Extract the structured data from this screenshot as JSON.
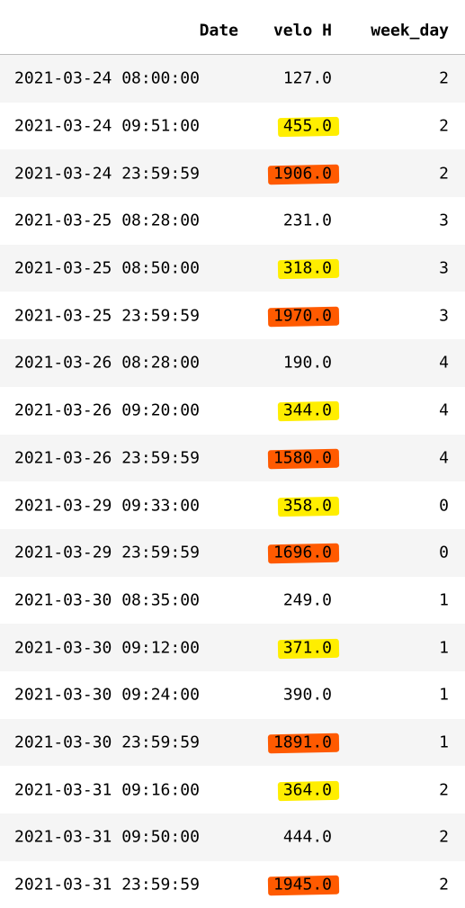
{
  "headers": {
    "date": "Date",
    "velo": "velo H",
    "week_day": "week_day"
  },
  "rows": [
    {
      "date": "2021-03-24 08:00:00",
      "velo": "127.0",
      "week_day": "2",
      "highlight": "none"
    },
    {
      "date": "2021-03-24 09:51:00",
      "velo": "455.0",
      "week_day": "2",
      "highlight": "yellow"
    },
    {
      "date": "2021-03-24 23:59:59",
      "velo": "1906.0",
      "week_day": "2",
      "highlight": "orange"
    },
    {
      "date": "2021-03-25 08:28:00",
      "velo": "231.0",
      "week_day": "3",
      "highlight": "none"
    },
    {
      "date": "2021-03-25 08:50:00",
      "velo": "318.0",
      "week_day": "3",
      "highlight": "yellow"
    },
    {
      "date": "2021-03-25 23:59:59",
      "velo": "1970.0",
      "week_day": "3",
      "highlight": "orange"
    },
    {
      "date": "2021-03-26 08:28:00",
      "velo": "190.0",
      "week_day": "4",
      "highlight": "none"
    },
    {
      "date": "2021-03-26 09:20:00",
      "velo": "344.0",
      "week_day": "4",
      "highlight": "yellow"
    },
    {
      "date": "2021-03-26 23:59:59",
      "velo": "1580.0",
      "week_day": "4",
      "highlight": "orange"
    },
    {
      "date": "2021-03-29 09:33:00",
      "velo": "358.0",
      "week_day": "0",
      "highlight": "yellow"
    },
    {
      "date": "2021-03-29 23:59:59",
      "velo": "1696.0",
      "week_day": "0",
      "highlight": "orange"
    },
    {
      "date": "2021-03-30 08:35:00",
      "velo": "249.0",
      "week_day": "1",
      "highlight": "none"
    },
    {
      "date": "2021-03-30 09:12:00",
      "velo": "371.0",
      "week_day": "1",
      "highlight": "yellow"
    },
    {
      "date": "2021-03-30 09:24:00",
      "velo": "390.0",
      "week_day": "1",
      "highlight": "none"
    },
    {
      "date": "2021-03-30 23:59:59",
      "velo": "1891.0",
      "week_day": "1",
      "highlight": "orange"
    },
    {
      "date": "2021-03-31 09:16:00",
      "velo": "364.0",
      "week_day": "2",
      "highlight": "yellow"
    },
    {
      "date": "2021-03-31 09:50:00",
      "velo": "444.0",
      "week_day": "2",
      "highlight": "none"
    },
    {
      "date": "2021-03-31 23:59:59",
      "velo": "1945.0",
      "week_day": "2",
      "highlight": "orange"
    }
  ],
  "colors": {
    "yellow": "#ffee00",
    "orange": "#ff5a00",
    "stripe": "#f5f5f5",
    "rule": "#bdbdbd"
  }
}
